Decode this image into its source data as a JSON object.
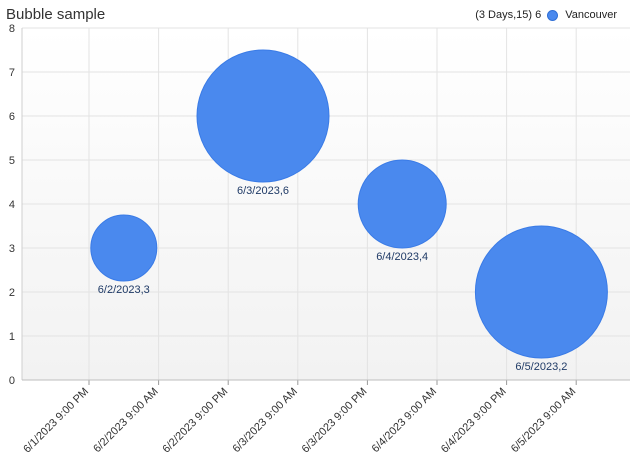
{
  "chart_data": {
    "type": "scatter",
    "title": "Bubble sample",
    "legend": {
      "note": "(3 Days,15) 6",
      "series_name": "Vancouver",
      "position": "top-right"
    },
    "x_ticks": [
      "6/1/2023 9:00 PM",
      "6/2/2023 9:00 AM",
      "6/2/2023 9:00 PM",
      "6/3/2023 9:00 AM",
      "6/3/2023 9:00 PM",
      "6/4/2023 9:00 AM",
      "6/4/2023 9:00 PM",
      "6/5/2023 9:00 AM"
    ],
    "ylim": [
      0,
      8
    ],
    "y_ticks": [
      0,
      1,
      2,
      3,
      4,
      5,
      6,
      7,
      8
    ],
    "grid": true,
    "series": [
      {
        "name": "Vancouver",
        "color": "#4a89ee",
        "points": [
          {
            "x": "6/2/2023",
            "y": 3,
            "size": 3,
            "label": "6/2/2023,3"
          },
          {
            "x": "6/3/2023",
            "y": 6,
            "size": 6,
            "label": "6/3/2023,6"
          },
          {
            "x": "6/4/2023",
            "y": 4,
            "size": 4,
            "label": "6/4/2023,4"
          },
          {
            "x": "6/5/2023",
            "y": 2,
            "size": 6,
            "label": "6/5/2023,2"
          }
        ]
      }
    ]
  }
}
